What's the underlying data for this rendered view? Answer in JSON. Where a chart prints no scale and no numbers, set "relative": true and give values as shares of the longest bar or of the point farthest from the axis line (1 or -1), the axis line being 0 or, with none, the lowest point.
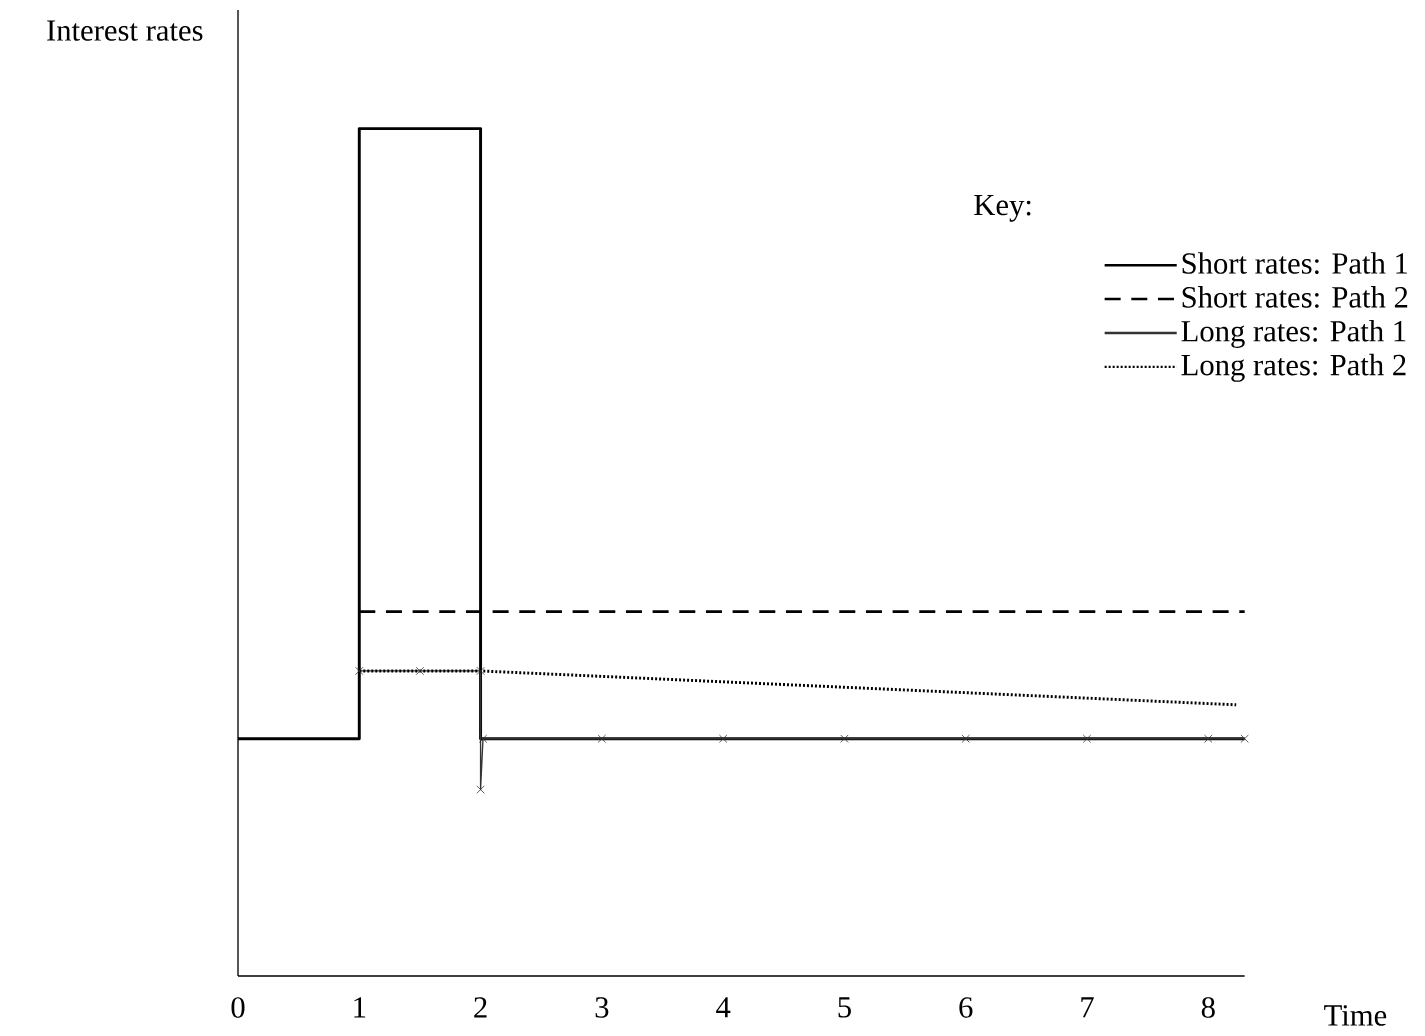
{
  "chart_data": {
    "type": "line",
    "relative": true,
    "xlabel": "Time",
    "ylabel": "Interest rates",
    "legend_title": "Key:",
    "legend": "top right",
    "xlim": [
      0,
      8.3
    ],
    "xticks": [
      0,
      1,
      2,
      3,
      4,
      5,
      6,
      7,
      8
    ],
    "series": [
      {
        "name": "Short rates:  Path 1",
        "type": "step",
        "color": "#000000",
        "line_style": "solid",
        "x": [
          0,
          1,
          2,
          8.3
        ],
        "values": [
          0.28,
          1,
          0.28,
          0.28
        ]
      },
      {
        "name": "Short rates:  Path 2",
        "color": "#000000",
        "line_style": "dashed",
        "x": [
          1,
          8.3
        ],
        "values": [
          0.43,
          0.43
        ]
      },
      {
        "name": "Long rates:  Path 1",
        "color": "#333333",
        "line_style": "solid",
        "marker": "cross",
        "x": [
          1,
          1.5,
          2,
          2,
          2.02,
          3,
          4,
          5,
          6,
          7,
          8,
          8.3
        ],
        "values": [
          0.36,
          0.36,
          0.36,
          0.22,
          0.28,
          0.28,
          0.28,
          0.28,
          0.28,
          0.28,
          0.28,
          0.28
        ]
      },
      {
        "name": "Long rates:  Path 2",
        "color": "#000000",
        "line_style": "dotted",
        "x": [
          1,
          2,
          8.23
        ],
        "values": [
          0.36,
          0.36,
          0.32
        ]
      }
    ]
  }
}
